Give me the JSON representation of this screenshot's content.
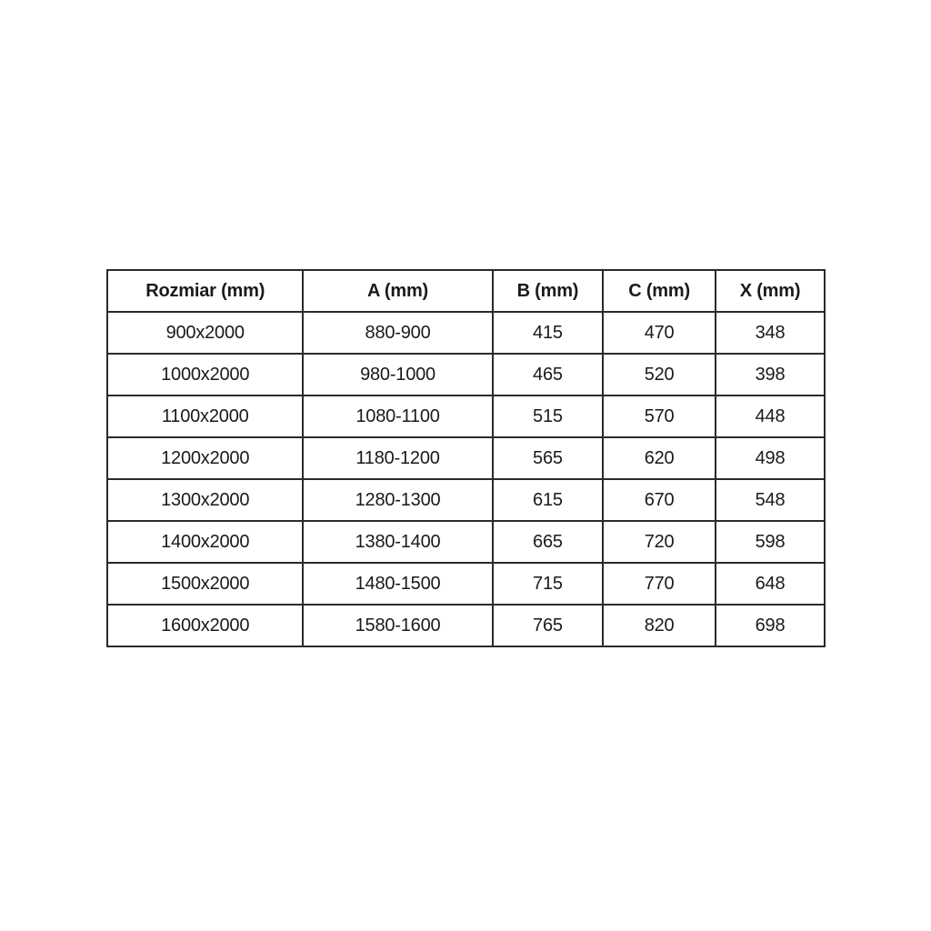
{
  "colors": {
    "background": "#ffffff",
    "border": "#2a2a2a",
    "text": "#1a1a1a"
  },
  "table": {
    "headers": [
      "Rozmiar (mm)",
      "A (mm)",
      "B (mm)",
      "C (mm)",
      "X (mm)"
    ],
    "rows": [
      [
        "900x2000",
        "880-900",
        "415",
        "470",
        "348"
      ],
      [
        "1000x2000",
        "980-1000",
        "465",
        "520",
        "398"
      ],
      [
        "1100x2000",
        "1080-1100",
        "515",
        "570",
        "448"
      ],
      [
        "1200x2000",
        "1180-1200",
        "565",
        "620",
        "498"
      ],
      [
        "1300x2000",
        "1280-1300",
        "615",
        "670",
        "548"
      ],
      [
        "1400x2000",
        "1380-1400",
        "665",
        "720",
        "598"
      ],
      [
        "1500x2000",
        "1480-1500",
        "715",
        "770",
        "648"
      ],
      [
        "1600x2000",
        "1580-1600",
        "765",
        "820",
        "698"
      ]
    ]
  },
  "chart_data": {
    "type": "table",
    "title": "",
    "columns": [
      "Rozmiar (mm)",
      "A (mm)",
      "B (mm)",
      "C (mm)",
      "X (mm)"
    ],
    "rows": [
      [
        "900x2000",
        "880-900",
        415,
        470,
        348
      ],
      [
        "1000x2000",
        "980-1000",
        465,
        520,
        398
      ],
      [
        "1100x2000",
        "1080-1100",
        515,
        570,
        448
      ],
      [
        "1200x2000",
        "1180-1200",
        565,
        620,
        498
      ],
      [
        "1300x2000",
        "1280-1300",
        615,
        670,
        548
      ],
      [
        "1400x2000",
        "1380-1400",
        665,
        720,
        598
      ],
      [
        "1500x2000",
        "1480-1500",
        715,
        770,
        648
      ],
      [
        "1600x2000",
        "1580-1600",
        765,
        820,
        698
      ]
    ]
  }
}
